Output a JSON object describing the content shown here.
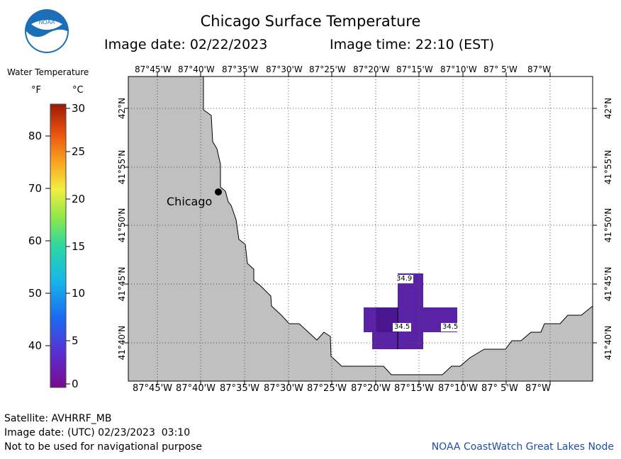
{
  "header": {
    "title": "Chicago Surface Temperature",
    "image_date": "Image date: 02/22/2023",
    "image_time": "Image time: 22:10 (EST)"
  },
  "logo": {
    "text": "NOAA"
  },
  "legend": {
    "title": "Water Temperature",
    "unit_f": "°F",
    "unit_c": "°C",
    "fahrenheit_ticks": [
      "80",
      "70",
      "60",
      "50",
      "40"
    ],
    "celsius_ticks": [
      "30",
      "25",
      "20",
      "15",
      "10",
      "5",
      "0"
    ]
  },
  "map": {
    "top_lon_labels": [
      "87°45'W",
      "87°40'W",
      "87°35'W",
      "87°30'W",
      "87°25'W",
      "87°20'W",
      "87°15'W",
      "87°10'W",
      "87° 5'W",
      "87°W"
    ],
    "bottom_lon_labels": [
      "87°45'W",
      "87°40'W",
      "87°35'W",
      "87°30'W",
      "87°25'W",
      "87°20'W",
      "87°15'W",
      "87°10'W",
      "87° 5'W",
      "87°W"
    ],
    "lat_labels": [
      "42°N",
      "41°55'N",
      "41°50'N",
      "41°45'N",
      "41°40'N"
    ],
    "city_label": "Chicago",
    "land_color": "#c0c0c0",
    "water_color": "#ffffff",
    "data_color": "#5a22a4",
    "temp_labels": [
      "34.9",
      "34.5",
      "34.5"
    ]
  },
  "footer": {
    "satellite": "Satellite: AVHRRF_MB",
    "utc_date": "Image date: (UTC) 02/23/2023  03:10",
    "note": "Not to be used for navigational purpose",
    "node": "NOAA CoastWatch Great Lakes Node"
  }
}
